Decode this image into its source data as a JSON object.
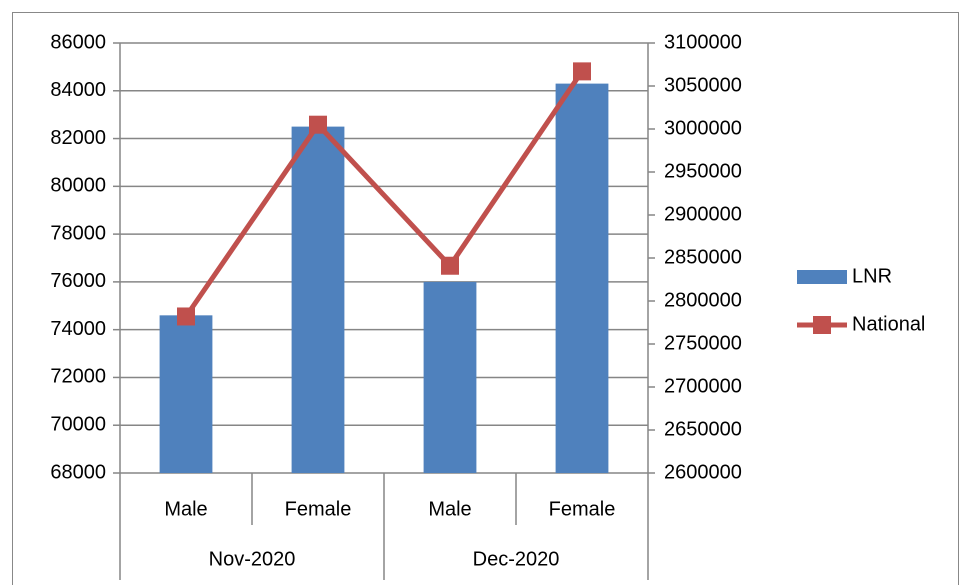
{
  "chart_data": {
    "type": "bar-line",
    "categories": [
      "Male",
      "Female",
      "Male",
      "Female"
    ],
    "category_groups": [
      "Nov-2020",
      "Dec-2020"
    ],
    "series": [
      {
        "name": "LNR",
        "type": "bar",
        "color": "#4f81bd",
        "axis": "y",
        "values": [
          74600,
          82500,
          76000,
          84300
        ]
      },
      {
        "name": "National",
        "type": "line",
        "color": "#c0504d",
        "axis": "y2",
        "values": [
          2782000,
          3005000,
          2841000,
          3067000
        ]
      }
    ],
    "ylim": [
      68000,
      86000
    ],
    "yticks": [
      68000,
      70000,
      72000,
      74000,
      76000,
      78000,
      80000,
      82000,
      84000,
      86000
    ],
    "y2lim": [
      2600000,
      3100000
    ],
    "y2ticks": [
      2600000,
      2650000,
      2700000,
      2750000,
      2800000,
      2850000,
      2900000,
      2950000,
      3000000,
      3050000,
      3100000
    ],
    "grid": true,
    "legend": "right"
  }
}
